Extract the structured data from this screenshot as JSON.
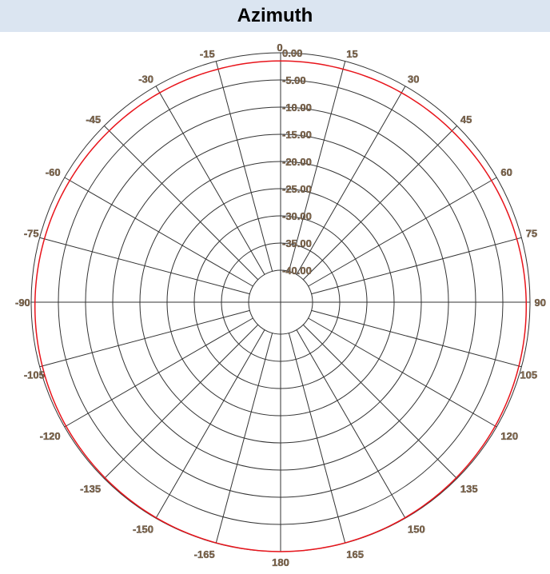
{
  "title": "Azimuth",
  "chart_data": {
    "type": "polar-line",
    "title": "Azimuth",
    "angle_ticks": [
      0,
      15,
      30,
      45,
      60,
      75,
      90,
      105,
      120,
      135,
      150,
      165,
      180,
      -165,
      -150,
      -135,
      -120,
      -105,
      -90,
      -75,
      -60,
      -45,
      -30,
      -15
    ],
    "angle_tick_labels": [
      "0",
      "15",
      "30",
      "45",
      "60",
      "75",
      "90",
      "105",
      "120",
      "135",
      "150",
      "165",
      "180",
      "-165",
      "-150",
      "-135",
      "-120",
      "-105",
      "-90",
      "-75",
      "-60",
      "-45",
      "-30",
      "-15"
    ],
    "radial_range": [
      -40,
      0
    ],
    "radial_ticks": [
      0,
      -5,
      -10,
      -15,
      -20,
      -25,
      -30,
      -35,
      -40
    ],
    "radial_tick_labels": [
      "0.00",
      "-5.00",
      "-10.00",
      "-15.00",
      "-20.00",
      "-25.00",
      "-30.00",
      "-35.00",
      "-40.00"
    ],
    "grid": true,
    "series": [
      {
        "color": "#e8141b",
        "angles": [
          0,
          15,
          30,
          45,
          60,
          75,
          90,
          105,
          120,
          135,
          150,
          165,
          180,
          -165,
          -150,
          -135,
          -120,
          -105,
          -90,
          -75,
          -60,
          -45,
          -30,
          -15
        ],
        "values": [
          -1.5,
          -1.5,
          -1.4,
          -1.3,
          -1.1,
          -0.9,
          -0.7,
          -0.5,
          -0.3,
          -0.2,
          -0.1,
          -0.05,
          0,
          -0.05,
          -0.1,
          -0.2,
          -0.3,
          -0.5,
          -0.7,
          -0.9,
          -1.1,
          -1.3,
          -1.4,
          -1.5
        ]
      }
    ]
  }
}
